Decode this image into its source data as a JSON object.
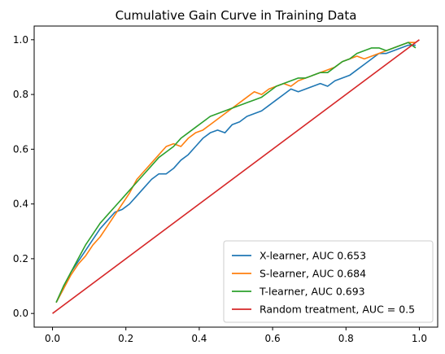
{
  "chart_data": {
    "type": "line",
    "title": "Cumulative Gain Curve in Training Data",
    "xlabel": "",
    "ylabel": "",
    "xlim": [
      -0.05,
      1.05
    ],
    "ylim": [
      -0.05,
      1.05
    ],
    "xticks": [
      0.0,
      0.2,
      0.4,
      0.6,
      0.8,
      1.0
    ],
    "xtick_labels": [
      "0.0",
      "0.2",
      "0.4",
      "0.6",
      "0.8",
      "1.0"
    ],
    "yticks": [
      0.0,
      0.2,
      0.4,
      0.6,
      0.8,
      1.0
    ],
    "ytick_labels": [
      "0.0",
      "0.2",
      "0.4",
      "0.6",
      "0.8",
      "1.0"
    ],
    "grid": false,
    "legend_position": "lower-right",
    "series": [
      {
        "name": "X-learner, AUC 0.653",
        "color": "#1f77b4",
        "x": [
          0.01,
          0.03,
          0.05,
          0.07,
          0.09,
          0.11,
          0.13,
          0.15,
          0.17,
          0.19,
          0.21,
          0.23,
          0.25,
          0.27,
          0.29,
          0.31,
          0.33,
          0.35,
          0.37,
          0.39,
          0.41,
          0.43,
          0.45,
          0.47,
          0.49,
          0.51,
          0.53,
          0.55,
          0.57,
          0.59,
          0.61,
          0.63,
          0.65,
          0.67,
          0.69,
          0.71,
          0.73,
          0.75,
          0.77,
          0.79,
          0.81,
          0.83,
          0.85,
          0.87,
          0.89,
          0.91,
          0.93,
          0.95,
          0.97,
          0.99
        ],
        "y": [
          0.04,
          0.09,
          0.15,
          0.19,
          0.23,
          0.27,
          0.31,
          0.34,
          0.37,
          0.38,
          0.4,
          0.43,
          0.46,
          0.49,
          0.51,
          0.51,
          0.53,
          0.56,
          0.58,
          0.61,
          0.64,
          0.66,
          0.67,
          0.66,
          0.69,
          0.7,
          0.72,
          0.73,
          0.74,
          0.76,
          0.78,
          0.8,
          0.82,
          0.81,
          0.82,
          0.83,
          0.84,
          0.83,
          0.85,
          0.86,
          0.87,
          0.89,
          0.91,
          0.93,
          0.95,
          0.95,
          0.96,
          0.97,
          0.98,
          0.98
        ]
      },
      {
        "name": "S-learner, AUC 0.684",
        "color": "#ff7f0e",
        "x": [
          0.01,
          0.03,
          0.05,
          0.07,
          0.09,
          0.11,
          0.13,
          0.15,
          0.17,
          0.19,
          0.21,
          0.23,
          0.25,
          0.27,
          0.29,
          0.31,
          0.33,
          0.35,
          0.37,
          0.39,
          0.41,
          0.43,
          0.45,
          0.47,
          0.49,
          0.51,
          0.53,
          0.55,
          0.57,
          0.59,
          0.61,
          0.63,
          0.65,
          0.67,
          0.69,
          0.71,
          0.73,
          0.75,
          0.77,
          0.79,
          0.81,
          0.83,
          0.85,
          0.87,
          0.89,
          0.91,
          0.93,
          0.95,
          0.97,
          0.99
        ],
        "y": [
          0.04,
          0.09,
          0.14,
          0.18,
          0.21,
          0.25,
          0.28,
          0.32,
          0.36,
          0.4,
          0.44,
          0.49,
          0.52,
          0.55,
          0.58,
          0.61,
          0.62,
          0.61,
          0.64,
          0.66,
          0.67,
          0.69,
          0.71,
          0.73,
          0.75,
          0.77,
          0.79,
          0.81,
          0.8,
          0.82,
          0.83,
          0.84,
          0.83,
          0.85,
          0.86,
          0.87,
          0.88,
          0.89,
          0.9,
          0.92,
          0.93,
          0.94,
          0.93,
          0.94,
          0.95,
          0.96,
          0.97,
          0.98,
          0.99,
          0.99
        ]
      },
      {
        "name": "T-learner, AUC 0.693",
        "color": "#2ca02c",
        "x": [
          0.01,
          0.03,
          0.05,
          0.07,
          0.09,
          0.11,
          0.13,
          0.15,
          0.17,
          0.19,
          0.21,
          0.23,
          0.25,
          0.27,
          0.29,
          0.31,
          0.33,
          0.35,
          0.37,
          0.39,
          0.41,
          0.43,
          0.45,
          0.47,
          0.49,
          0.51,
          0.53,
          0.55,
          0.57,
          0.59,
          0.61,
          0.63,
          0.65,
          0.67,
          0.69,
          0.71,
          0.73,
          0.75,
          0.77,
          0.79,
          0.81,
          0.83,
          0.85,
          0.87,
          0.89,
          0.91,
          0.93,
          0.95,
          0.97,
          0.99
        ],
        "y": [
          0.04,
          0.1,
          0.15,
          0.2,
          0.25,
          0.29,
          0.33,
          0.36,
          0.39,
          0.42,
          0.45,
          0.48,
          0.51,
          0.54,
          0.57,
          0.59,
          0.61,
          0.64,
          0.66,
          0.68,
          0.7,
          0.72,
          0.73,
          0.74,
          0.75,
          0.76,
          0.77,
          0.78,
          0.79,
          0.81,
          0.83,
          0.84,
          0.85,
          0.86,
          0.86,
          0.87,
          0.88,
          0.88,
          0.9,
          0.92,
          0.93,
          0.95,
          0.96,
          0.97,
          0.97,
          0.96,
          0.97,
          0.98,
          0.99,
          0.97
        ]
      },
      {
        "name": "Random treatment, AUC = 0.5",
        "color": "#d62728",
        "x": [
          0.0,
          1.0
        ],
        "y": [
          0.0,
          1.0
        ]
      }
    ]
  }
}
